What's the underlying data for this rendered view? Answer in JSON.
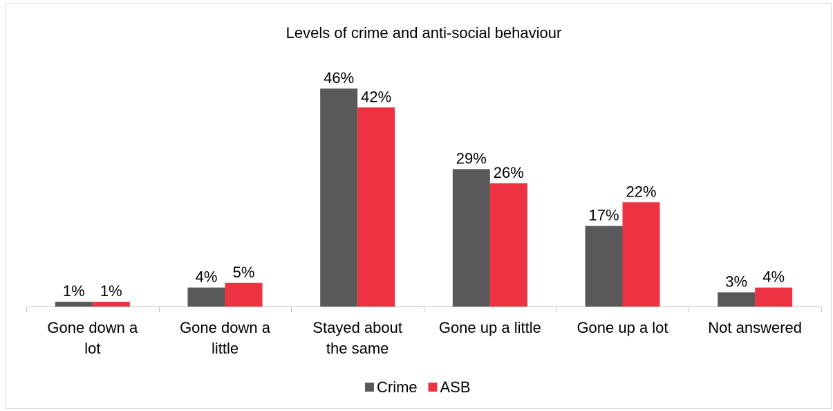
{
  "chart_data": {
    "type": "bar",
    "title": "Levels of crime and anti-social behaviour",
    "categories": [
      [
        "Gone down a",
        "lot"
      ],
      [
        "Gone down a",
        "little"
      ],
      [
        "Stayed about",
        "the same"
      ],
      [
        "Gone up a little"
      ],
      [
        "Gone up a lot"
      ],
      [
        "Not answered"
      ]
    ],
    "series": [
      {
        "name": "Crime",
        "color": "#595959",
        "values": [
          1,
          4,
          46,
          29,
          17,
          3
        ],
        "labels": [
          "1%",
          "4%",
          "46%",
          "29%",
          "17%",
          "3%"
        ]
      },
      {
        "name": "ASB",
        "color": "#ed3341",
        "values": [
          1,
          5,
          42,
          26,
          22,
          4
        ],
        "labels": [
          "1%",
          "5%",
          "42%",
          "26%",
          "22%",
          "4%"
        ]
      }
    ],
    "ylim": [
      0,
      50
    ],
    "grid": false,
    "legend": "bottom",
    "xlabel": "",
    "ylabel": ""
  }
}
